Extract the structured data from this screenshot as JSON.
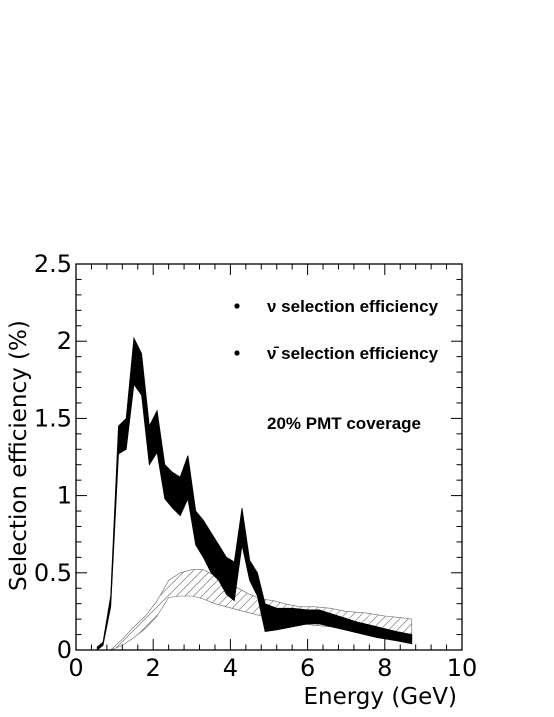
{
  "chart_data": {
    "type": "area",
    "title": "",
    "xlabel": "Energy (GeV)",
    "ylabel": "Selection efficiency (%)",
    "xlim": [
      0,
      10
    ],
    "ylim": [
      0,
      2.5
    ],
    "xticks": [
      0,
      2,
      4,
      6,
      8,
      10
    ],
    "xtick_labels": [
      "0",
      "2",
      "4",
      "6",
      "8",
      "10"
    ],
    "yticks": [
      0,
      0.5,
      1,
      1.5,
      2,
      2.5
    ],
    "ytick_labels": [
      "0",
      "0.5",
      "1",
      "1.5",
      "2",
      "2.5"
    ],
    "grid": false,
    "legend_position": "top-right",
    "annotation": "20% PMT coverage",
    "series": [
      {
        "name": "ν selection efficiency",
        "style": "solid-band",
        "color": "#000000",
        "x": [
          0.55,
          0.7,
          0.9,
          1.1,
          1.3,
          1.5,
          1.7,
          1.9,
          2.1,
          2.3,
          2.5,
          2.7,
          2.9,
          3.1,
          3.3,
          3.5,
          3.7,
          3.9,
          4.1,
          4.3,
          4.5,
          4.7,
          4.9,
          5.2,
          5.6,
          6.0,
          6.3,
          6.8,
          7.3,
          7.8,
          8.3,
          8.7
        ],
        "upper": [
          0.02,
          0.05,
          0.35,
          1.45,
          1.5,
          2.02,
          1.92,
          1.45,
          1.55,
          1.2,
          1.15,
          1.12,
          1.26,
          0.9,
          0.84,
          0.76,
          0.68,
          0.6,
          0.57,
          0.92,
          0.58,
          0.5,
          0.3,
          0.27,
          0.27,
          0.26,
          0.26,
          0.22,
          0.18,
          0.15,
          0.12,
          0.1
        ],
        "lower": [
          0.0,
          0.03,
          0.28,
          1.27,
          1.3,
          1.72,
          1.65,
          1.2,
          1.28,
          0.98,
          0.92,
          0.87,
          0.98,
          0.68,
          0.6,
          0.5,
          0.45,
          0.36,
          0.32,
          0.68,
          0.45,
          0.35,
          0.12,
          0.13,
          0.15,
          0.17,
          0.17,
          0.14,
          0.11,
          0.08,
          0.06,
          0.04
        ]
      },
      {
        "name": "ν̄ selection efficiency",
        "style": "hatched-band",
        "color": "#555555",
        "x": [
          0.9,
          1.2,
          1.5,
          1.8,
          2.1,
          2.4,
          2.7,
          3.0,
          3.3,
          3.6,
          3.9,
          4.2,
          4.5,
          4.8,
          5.1,
          5.4,
          5.8,
          6.2,
          6.6,
          7.0,
          7.5,
          8.0,
          8.4,
          8.7
        ],
        "upper": [
          0.0,
          0.07,
          0.15,
          0.22,
          0.32,
          0.45,
          0.5,
          0.52,
          0.52,
          0.48,
          0.43,
          0.4,
          0.36,
          0.33,
          0.32,
          0.3,
          0.28,
          0.28,
          0.27,
          0.25,
          0.24,
          0.22,
          0.21,
          0.2
        ],
        "lower": [
          0.0,
          0.03,
          0.08,
          0.14,
          0.22,
          0.34,
          0.35,
          0.35,
          0.33,
          0.3,
          0.28,
          0.26,
          0.24,
          0.22,
          0.2,
          0.18,
          0.17,
          0.16,
          0.15,
          0.13,
          0.12,
          0.11,
          0.1,
          0.1
        ]
      }
    ]
  }
}
